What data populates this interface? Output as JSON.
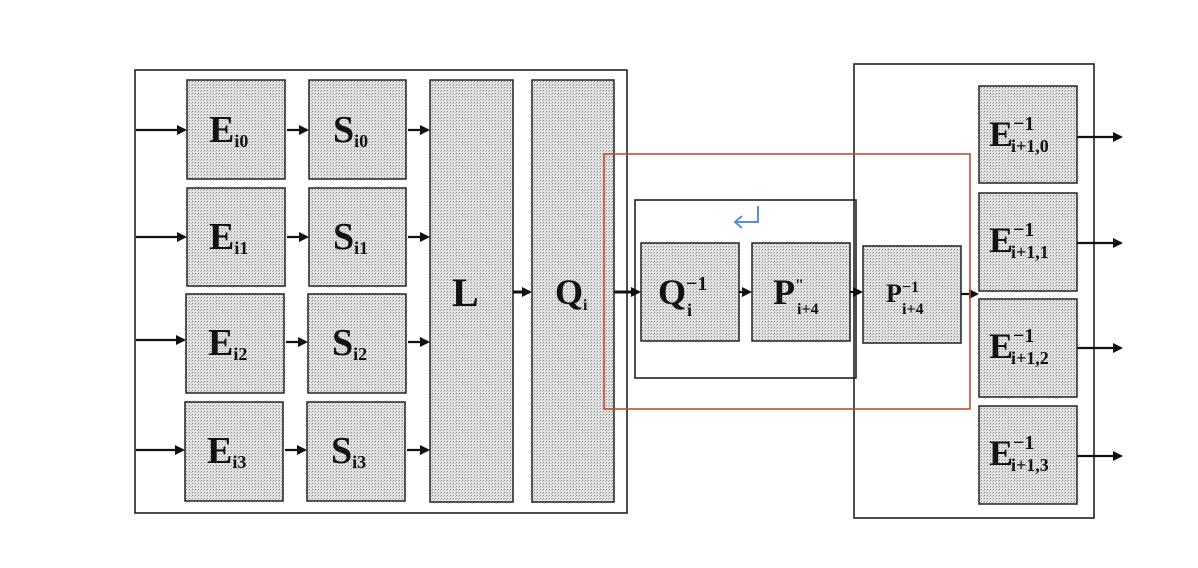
{
  "diagram": {
    "e_blocks": [
      {
        "base": "E",
        "sub": "i0"
      },
      {
        "base": "E",
        "sub": "i1"
      },
      {
        "base": "E",
        "sub": "i2"
      },
      {
        "base": "E",
        "sub": "i3"
      }
    ],
    "s_blocks": [
      {
        "base": "S",
        "sub": "i0"
      },
      {
        "base": "S",
        "sub": "i1"
      },
      {
        "base": "S",
        "sub": "i2"
      },
      {
        "base": "S",
        "sub": "i3"
      }
    ],
    "l_block": {
      "base": "L"
    },
    "q_block": {
      "base": "Q",
      "sub": "i"
    },
    "inner_blocks": [
      {
        "base": "Q",
        "sup": "−1",
        "sub": "i"
      },
      {
        "base": "P",
        "sup": "\"",
        "sub": "i+4"
      }
    ],
    "p_block": {
      "base": "P",
      "sup": "−1",
      "sub": "i+4"
    },
    "out_blocks": [
      {
        "base": "E",
        "sup": "−1",
        "sub": "i+1,0"
      },
      {
        "base": "E",
        "sup": "−1",
        "sub": "i+1,1"
      },
      {
        "base": "E",
        "sup": "−1",
        "sub": "i+1,2"
      },
      {
        "base": "E",
        "sup": "−1",
        "sub": "i+1,3"
      }
    ],
    "return_icon": "return-arrow-icon",
    "highlight_color": "#c0502a",
    "icon_color": "#5b8fd6"
  }
}
